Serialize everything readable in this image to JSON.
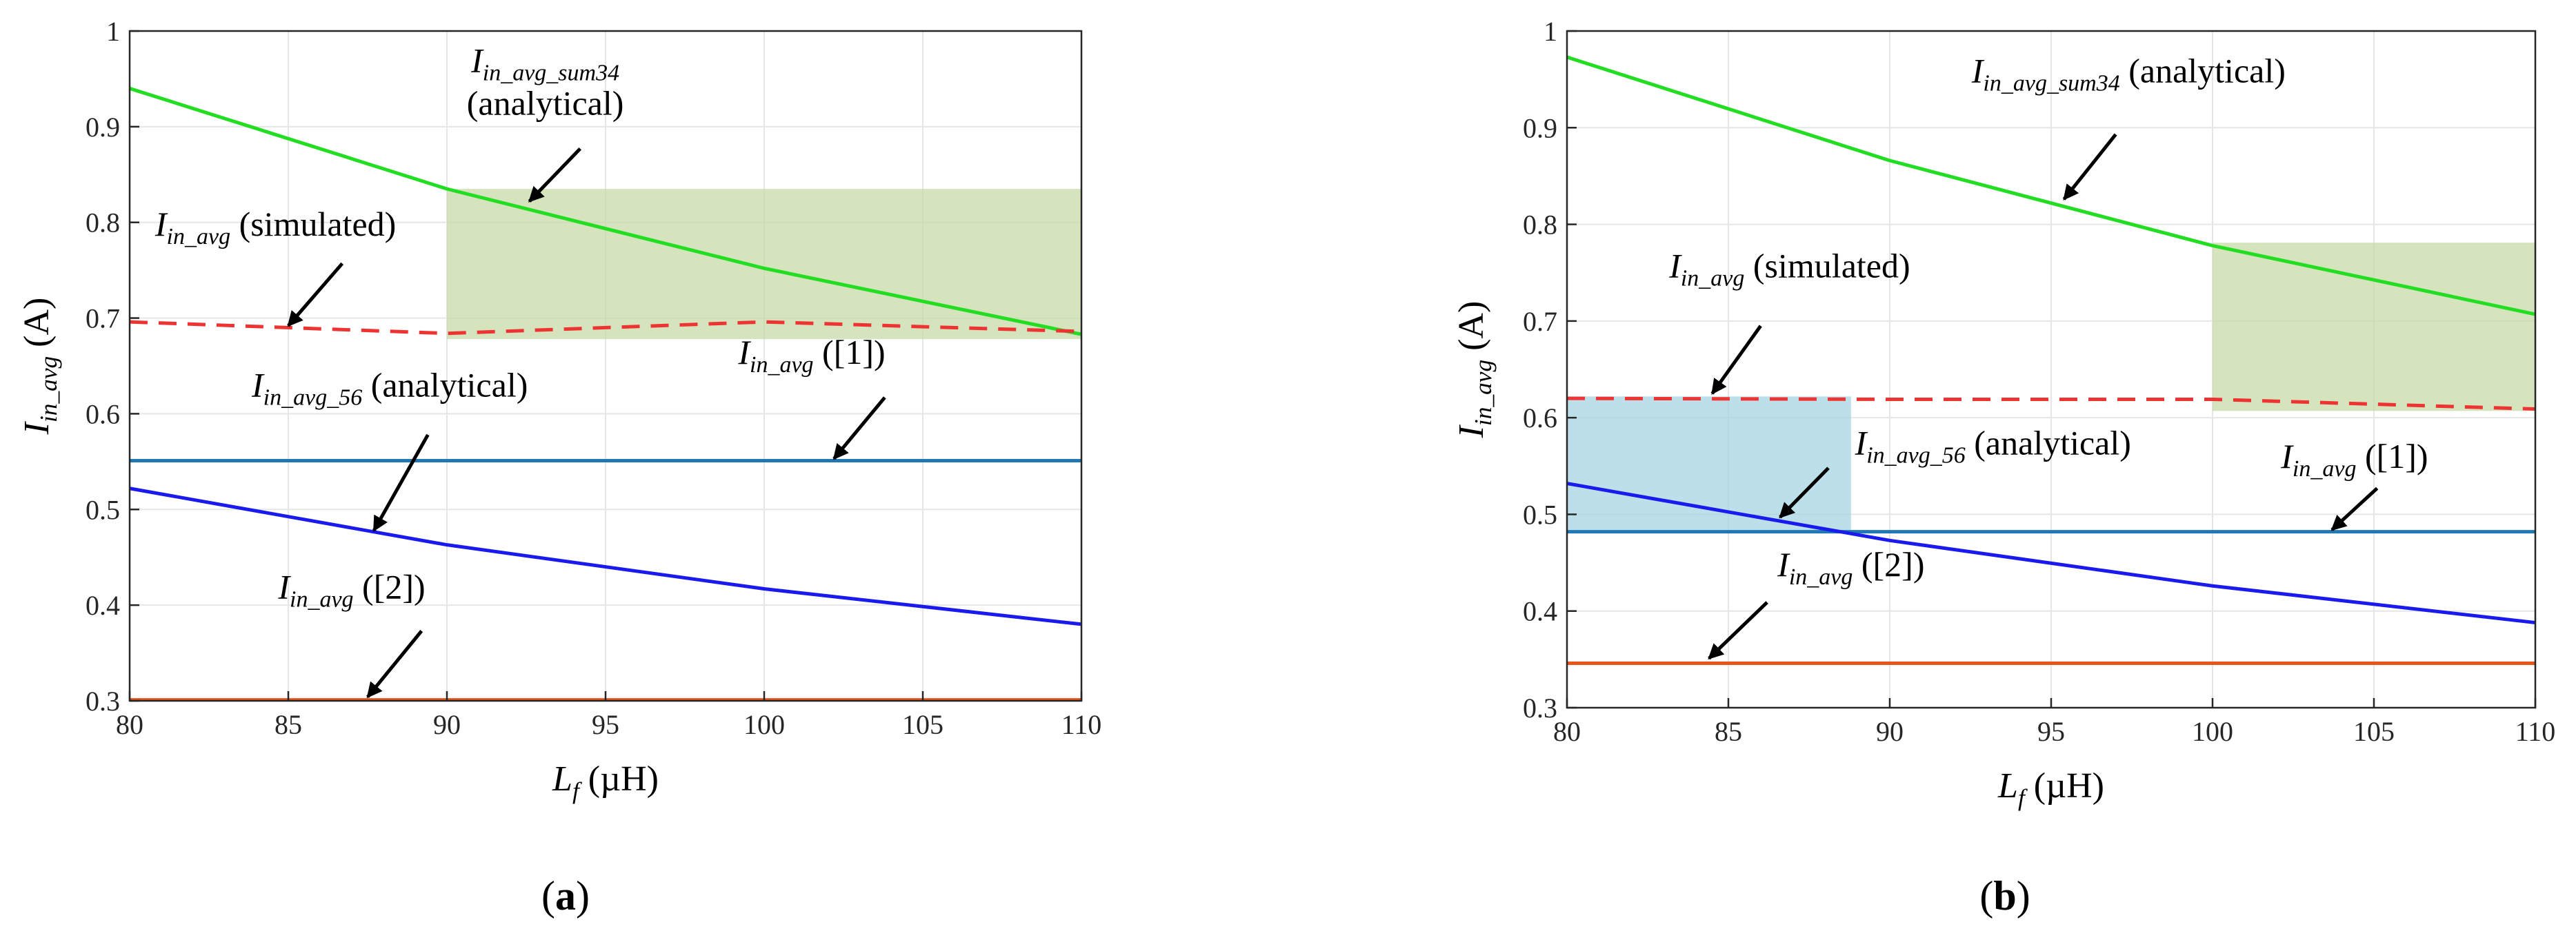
{
  "colors": {
    "green": "#22dd22",
    "red_dashed": "#ee3333",
    "light_blue": "#1f77b4",
    "blue": "#1a1aee",
    "orange": "#e8541a",
    "green_shade": "#c5d9a3",
    "blue_shade": "#a3d3e0",
    "grid": "#e6e6e6",
    "arrow": "#000000"
  },
  "chart_data": [
    {
      "type": "line",
      "panel_label": "(a)",
      "panel_letter": "a",
      "xlabel_main": "L",
      "xlabel_sub": "f",
      "xlabel_unit": "(µH)",
      "ylabel_main": "I",
      "ylabel_sub": "in_avg",
      "ylabel_unit": "(A)",
      "xlim": [
        80,
        110
      ],
      "ylim": [
        0.3,
        1.0
      ],
      "xticks": [
        80,
        85,
        90,
        95,
        100,
        105,
        110
      ],
      "yticks": [
        0.3,
        0.4,
        0.5,
        0.6,
        0.7,
        0.8,
        0.9,
        1.0
      ],
      "ytick_labels": [
        "0.3",
        "0.4",
        "0.5",
        "0.6",
        "0.7",
        "0.8",
        "0.9",
        "1"
      ],
      "grid": true,
      "series": [
        {
          "name": "I_in_avg_sum34 (analytical)",
          "color": "green",
          "dash": false,
          "x": [
            80,
            90,
            100,
            110
          ],
          "y": [
            0.94,
            0.835,
            0.752,
            0.683
          ]
        },
        {
          "name": "I_in_avg (simulated)",
          "color": "red_dashed",
          "dash": true,
          "x": [
            80,
            90,
            100,
            110
          ],
          "y": [
            0.696,
            0.684,
            0.696,
            0.686
          ]
        },
        {
          "name": "I_in_avg ([1])",
          "color": "light_blue",
          "dash": false,
          "x": [
            80,
            110
          ],
          "y": [
            0.551,
            0.551
          ]
        },
        {
          "name": "I_in_avg_56 (analytical)",
          "color": "blue",
          "dash": false,
          "x": [
            80,
            90,
            100,
            110
          ],
          "y": [
            0.522,
            0.463,
            0.417,
            0.38
          ]
        },
        {
          "name": "I_in_avg ([2])",
          "color": "orange",
          "dash": false,
          "x": [
            80,
            110
          ],
          "y": [
            0.301,
            0.301
          ]
        }
      ],
      "shaded_regions": [
        {
          "color": "green_shade",
          "x": [
            90,
            110
          ],
          "y": [
            0.678,
            0.835
          ]
        }
      ],
      "annotations": [
        {
          "main": "I",
          "sub": "in_avg_sum34",
          "suffix": "",
          "line2": "(analytical)",
          "tx": 93.1,
          "ty": 0.957,
          "ax": 94.2,
          "ay": 0.877,
          "hx": 92.6,
          "hy": 0.822
        },
        {
          "main": "I",
          "sub": "in_avg",
          "suffix": " (simulated)",
          "line2": "",
          "tx": 84.6,
          "ty": 0.786,
          "ax": 86.7,
          "ay": 0.757,
          "hx": 85.0,
          "hy": 0.692
        },
        {
          "main": "I",
          "sub": "in_avg_56",
          "suffix": " (analytical)",
          "line2": "",
          "tx": 88.2,
          "ty": 0.618,
          "ax": 89.4,
          "ay": 0.578,
          "hx": 87.7,
          "hy": 0.478
        },
        {
          "main": "I",
          "sub": "in_avg",
          "suffix": " ([1])",
          "line2": "",
          "tx": 101.5,
          "ty": 0.652,
          "ax": 103.8,
          "ay": 0.617,
          "hx": 102.2,
          "hy": 0.553
        },
        {
          "main": "I",
          "sub": "in_avg",
          "suffix": " ([2])",
          "line2": "",
          "tx": 87.0,
          "ty": 0.407,
          "ax": 89.2,
          "ay": 0.373,
          "hx": 87.5,
          "hy": 0.304
        }
      ]
    },
    {
      "type": "line",
      "panel_label": "(b)",
      "panel_letter": "b",
      "xlabel_main": "L",
      "xlabel_sub": "f",
      "xlabel_unit": "(µH)",
      "ylabel_main": "I",
      "ylabel_sub": "in_avg",
      "ylabel_unit": "(A)",
      "xlim": [
        80,
        110
      ],
      "ylim": [
        0.3,
        1.0
      ],
      "xticks": [
        80,
        85,
        90,
        95,
        100,
        105,
        110
      ],
      "yticks": [
        0.3,
        0.4,
        0.5,
        0.6,
        0.7,
        0.8,
        0.9,
        1.0
      ],
      "ytick_labels": [
        "0.3",
        "0.4",
        "0.5",
        "0.6",
        "0.7",
        "0.8",
        "0.9",
        "1"
      ],
      "grid": true,
      "series": [
        {
          "name": "I_in_avg_sum34 (analytical)",
          "color": "green",
          "dash": false,
          "x": [
            80,
            90,
            100,
            110
          ],
          "y": [
            0.973,
            0.866,
            0.778,
            0.707
          ]
        },
        {
          "name": "I_in_avg (simulated)",
          "color": "red_dashed",
          "dash": true,
          "x": [
            80,
            90,
            100,
            110
          ],
          "y": [
            0.62,
            0.619,
            0.619,
            0.609
          ]
        },
        {
          "name": "I_in_avg ([1])",
          "color": "light_blue",
          "dash": false,
          "x": [
            80,
            110
          ],
          "y": [
            0.482,
            0.482
          ]
        },
        {
          "name": "I_in_avg_56 (analytical)",
          "color": "blue",
          "dash": false,
          "x": [
            80,
            90,
            100,
            110
          ],
          "y": [
            0.532,
            0.473,
            0.426,
            0.388
          ]
        },
        {
          "name": "I_in_avg ([2])",
          "color": "orange",
          "dash": false,
          "x": [
            80,
            110
          ],
          "y": [
            0.346,
            0.346
          ]
        }
      ],
      "shaded_regions": [
        {
          "color": "green_shade",
          "x": [
            100,
            110
          ],
          "y": [
            0.607,
            0.781
          ]
        },
        {
          "color": "blue_shade",
          "x": [
            80,
            88.8
          ],
          "y": [
            0.482,
            0.622
          ]
        }
      ],
      "annotations": [
        {
          "main": "I",
          "sub": "in_avg_sum34",
          "suffix": " (analytical)",
          "line2": "",
          "tx": 97.4,
          "ty": 0.947,
          "ax": 97.0,
          "ay": 0.893,
          "hx": 95.4,
          "hy": 0.826
        },
        {
          "main": "I",
          "sub": "in_avg",
          "suffix": " (simulated)",
          "line2": "",
          "tx": 86.9,
          "ty": 0.745,
          "ax": 86.0,
          "ay": 0.695,
          "hx": 84.5,
          "hy": 0.625
        },
        {
          "main": "I",
          "sub": "in_avg_56",
          "suffix": " (analytical)",
          "line2": "",
          "tx": 93.2,
          "ty": 0.562,
          "ax": 88.1,
          "ay": 0.548,
          "hx": 86.6,
          "hy": 0.497
        },
        {
          "main": "I",
          "sub": "in_avg",
          "suffix": " ([1])",
          "line2": "",
          "tx": 104.4,
          "ty": 0.548,
          "ax": 105.1,
          "ay": 0.527,
          "hx": 103.7,
          "hy": 0.484
        },
        {
          "main": "I",
          "sub": "in_avg",
          "suffix": " ([2])",
          "line2": "",
          "tx": 88.8,
          "ty": 0.436,
          "ax": 86.2,
          "ay": 0.409,
          "hx": 84.4,
          "hy": 0.351
        }
      ]
    }
  ]
}
